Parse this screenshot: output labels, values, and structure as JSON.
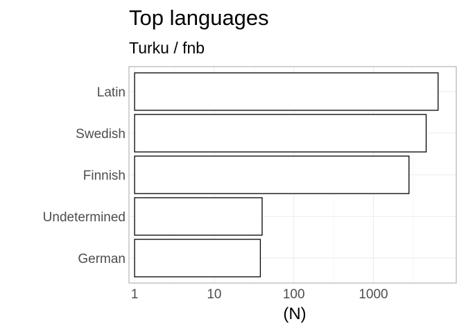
{
  "chart_data": {
    "type": "bar",
    "orientation": "horizontal",
    "title": "Top languages",
    "subtitle": "Turku / fnb",
    "xlabel": "(N)",
    "ylabel": "",
    "x_scale": "log10",
    "xlim": [
      0.85,
      11000
    ],
    "x_ticks": [
      1,
      10,
      100,
      1000
    ],
    "x_tick_labels": [
      "1",
      "10",
      "100",
      "1000"
    ],
    "categories": [
      "Latin",
      "Swedish",
      "Finnish",
      "Undetermined",
      "German"
    ],
    "values": [
      6500,
      4600,
      2800,
      40,
      38
    ],
    "bar_fill": "#ffffff",
    "bar_outline": "#000000",
    "grid": true,
    "legend": "none"
  }
}
